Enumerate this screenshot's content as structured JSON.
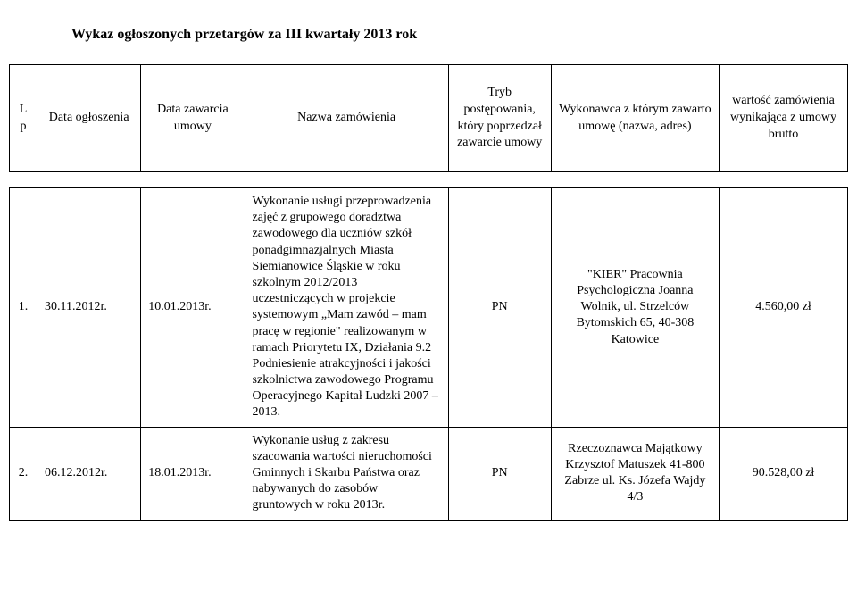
{
  "title": "Wykaz ogłoszonych przetargów za III kwartały 2013 rok",
  "headers": {
    "lp": "Lp",
    "data_ogl": "Data ogłoszenia",
    "data_zaw": "Data zawarcia umowy",
    "nazwa": "Nazwa zamówienia",
    "tryb": "Tryb postępowania, który poprzedzał zawarcie umowy",
    "wykonawca": "Wykonawca z którym zawarto umowę (nazwa, adres)",
    "wartosc": "wartość zamówienia wynikająca z umowy brutto"
  },
  "rows": [
    {
      "lp": "1.",
      "data_ogl": "30.11.2012r.",
      "data_zaw": "10.01.2013r.",
      "nazwa": "Wykonanie usługi przeprowadzenia zajęć z grupowego doradztwa zawodowego dla uczniów szkół ponadgimnazjalnych Miasta Siemianowice Śląskie w roku szkolnym 2012/2013 uczestniczących w projekcie systemowym „Mam zawód – mam pracę  w regionie\" realizowanym w ramach Priorytetu IX, Działania 9.2 Podniesienie atrakcyjności i jakości szkolnictwa zawodowego Programu Operacyjnego Kapitał Ludzki 2007 – 2013.",
      "tryb": "PN",
      "wykonawca": "\"KIER\" Pracownia Psychologiczna Joanna Wolnik, ul. Strzelców Bytomskich 65, 40-308 Katowice",
      "wartosc": "4.560,00 zł"
    },
    {
      "lp": "2.",
      "data_ogl": "06.12.2012r.",
      "data_zaw": "18.01.2013r.",
      "nazwa": "Wykonanie usług z zakresu szacowania wartości nieruchomości Gminnych i Skarbu Państwa oraz nabywanych do zasobów gruntowych w roku 2013r.",
      "tryb": "PN",
      "wykonawca": "Rzeczoznawca Majątkowy Krzysztof Matuszek 41-800 Zabrze ul. Ks. Józefa Wajdy 4/3",
      "wartosc": "90.528,00 zł"
    }
  ]
}
